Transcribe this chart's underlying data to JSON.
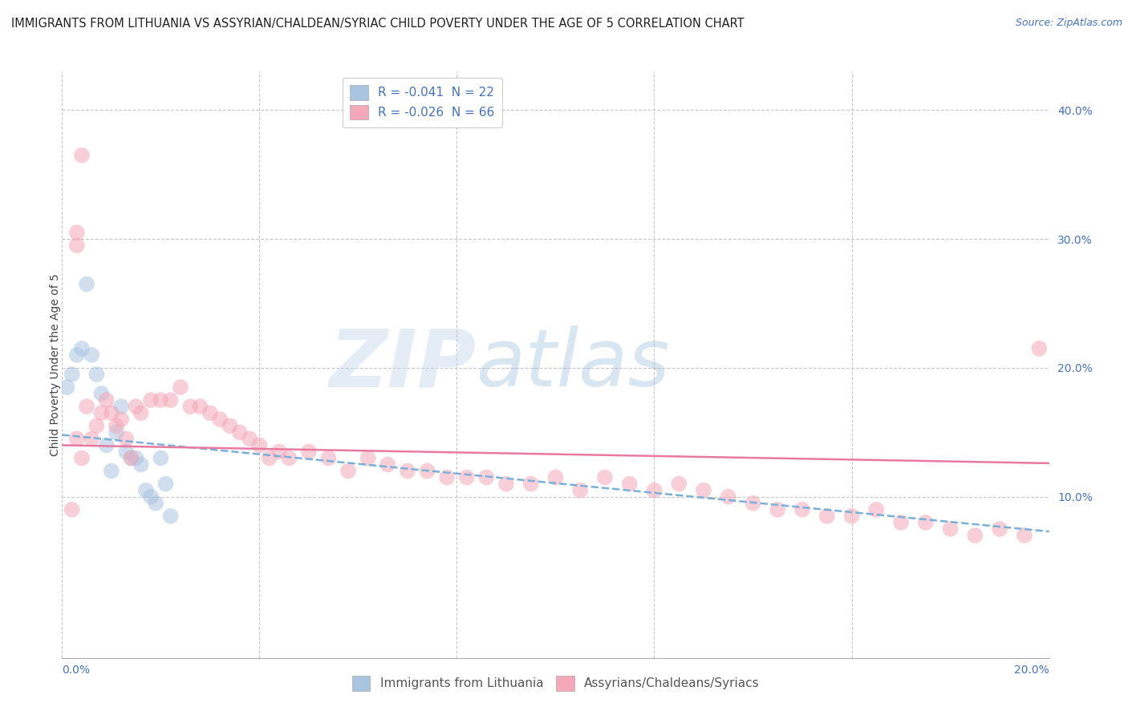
{
  "title": "IMMIGRANTS FROM LITHUANIA VS ASSYRIAN/CHALDEAN/SYRIAC CHILD POVERTY UNDER THE AGE OF 5 CORRELATION CHART",
  "source": "Source: ZipAtlas.com",
  "ylabel": "Child Poverty Under the Age of 5",
  "right_yticks": [
    "10.0%",
    "20.0%",
    "30.0%",
    "40.0%"
  ],
  "right_ytick_vals": [
    0.1,
    0.2,
    0.3,
    0.4
  ],
  "legend_entry1": "R = -0.041  N = 22",
  "legend_entry2": "R = -0.026  N = 66",
  "watermark_zip": "ZIP",
  "watermark_atlas": "atlas",
  "blue_color": "#aac4e0",
  "pink_color": "#f4a8b8",
  "blue_line_color": "#7ab0d8",
  "pink_line_color": "#e87aa0",
  "xlim": [
    0.0,
    0.2
  ],
  "ylim": [
    -0.025,
    0.43
  ],
  "blue_scatter_x": [
    0.002,
    0.003,
    0.004,
    0.005,
    0.006,
    0.007,
    0.008,
    0.009,
    0.01,
    0.011,
    0.012,
    0.013,
    0.014,
    0.015,
    0.016,
    0.017,
    0.018,
    0.019,
    0.02,
    0.021,
    0.022,
    0.001
  ],
  "blue_scatter_y": [
    0.195,
    0.21,
    0.215,
    0.265,
    0.21,
    0.195,
    0.18,
    0.14,
    0.12,
    0.15,
    0.17,
    0.135,
    0.13,
    0.13,
    0.125,
    0.105,
    0.1,
    0.095,
    0.13,
    0.11,
    0.085,
    0.185
  ],
  "pink_scatter_x": [
    0.002,
    0.003,
    0.004,
    0.005,
    0.006,
    0.007,
    0.008,
    0.009,
    0.01,
    0.011,
    0.012,
    0.013,
    0.014,
    0.015,
    0.016,
    0.018,
    0.02,
    0.022,
    0.024,
    0.026,
    0.028,
    0.03,
    0.032,
    0.034,
    0.036,
    0.038,
    0.04,
    0.042,
    0.044,
    0.046,
    0.05,
    0.054,
    0.058,
    0.062,
    0.066,
    0.07,
    0.074,
    0.078,
    0.082,
    0.086,
    0.09,
    0.095,
    0.1,
    0.105,
    0.11,
    0.115,
    0.12,
    0.125,
    0.13,
    0.135,
    0.14,
    0.145,
    0.15,
    0.155,
    0.16,
    0.165,
    0.17,
    0.175,
    0.18,
    0.185,
    0.19,
    0.195,
    0.198,
    0.003,
    0.003,
    0.004
  ],
  "pink_scatter_y": [
    0.09,
    0.145,
    0.13,
    0.17,
    0.145,
    0.155,
    0.165,
    0.175,
    0.165,
    0.155,
    0.16,
    0.145,
    0.13,
    0.17,
    0.165,
    0.175,
    0.175,
    0.175,
    0.185,
    0.17,
    0.17,
    0.165,
    0.16,
    0.155,
    0.15,
    0.145,
    0.14,
    0.13,
    0.135,
    0.13,
    0.135,
    0.13,
    0.12,
    0.13,
    0.125,
    0.12,
    0.12,
    0.115,
    0.115,
    0.115,
    0.11,
    0.11,
    0.115,
    0.105,
    0.115,
    0.11,
    0.105,
    0.11,
    0.105,
    0.1,
    0.095,
    0.09,
    0.09,
    0.085,
    0.085,
    0.09,
    0.08,
    0.08,
    0.075,
    0.07,
    0.075,
    0.07,
    0.215,
    0.295,
    0.305,
    0.365
  ],
  "blue_trend_x": [
    0.0,
    0.2
  ],
  "blue_trend_y": [
    0.148,
    0.073
  ],
  "pink_trend_x": [
    0.0,
    0.2
  ],
  "pink_trend_y": [
    0.14,
    0.126
  ],
  "scatter_size": 200,
  "scatter_alpha": 0.55,
  "grid_color": "#c8c8c8",
  "grid_style": "--",
  "background_color": "#ffffff",
  "title_fontsize": 10.5,
  "axis_label_fontsize": 10,
  "tick_fontsize": 10,
  "legend_fontsize": 11,
  "source_fontsize": 9
}
